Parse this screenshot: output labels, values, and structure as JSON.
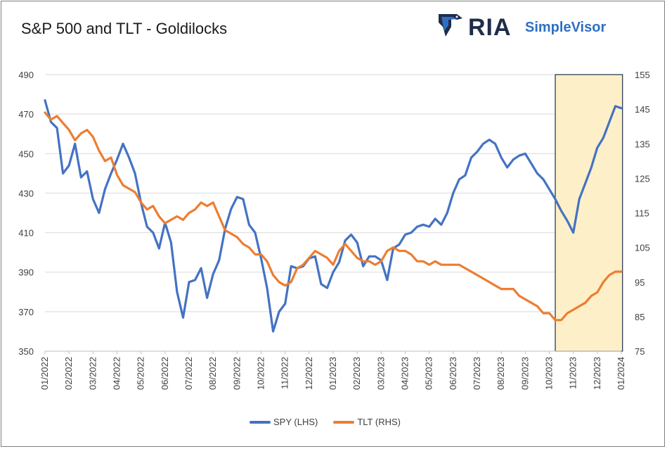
{
  "title": "S&P 500 and TLT - Goldilocks",
  "brand": {
    "logo_icon": "eagle-shield-icon",
    "name": "RIA",
    "product": "SimpleVisor"
  },
  "chart_data": {
    "type": "line",
    "title": "S&P 500 and TLT - Goldilocks",
    "x_tick_labels": [
      "01/2022",
      "02/2022",
      "03/2022",
      "04/2022",
      "05/2022",
      "06/2022",
      "07/2022",
      "08/2022",
      "09/2022",
      "10/2022",
      "11/2022",
      "12/2022",
      "01/2023",
      "02/2023",
      "03/2023",
      "04/2023",
      "05/2023",
      "06/2023",
      "07/2023",
      "08/2023",
      "09/2023",
      "10/2023",
      "11/2023",
      "12/2023",
      "01/2024"
    ],
    "left_axis": {
      "ylim": [
        350,
        490
      ],
      "ticks": [
        350,
        370,
        390,
        410,
        430,
        450,
        470,
        490
      ]
    },
    "right_axis": {
      "ylim": [
        75,
        155
      ],
      "ticks": [
        75,
        85,
        95,
        105,
        115,
        125,
        135,
        145,
        155
      ]
    },
    "grid": "horizontal",
    "legend_position": "bottom",
    "highlight": {
      "from": "10/2023",
      "to": "01/2024",
      "fill": "#fdf0c8",
      "border": "#1f2d4a"
    },
    "series": [
      {
        "name": "SPY (LHS)",
        "axis": "left",
        "color": "#4472c4",
        "x": [
          "01/2022",
          "01/2022",
          "01/2022",
          "01/2022",
          "02/2022",
          "02/2022",
          "02/2022",
          "02/2022",
          "03/2022",
          "03/2022",
          "03/2022",
          "03/2022",
          "04/2022",
          "04/2022",
          "04/2022",
          "04/2022",
          "05/2022",
          "05/2022",
          "05/2022",
          "05/2022",
          "06/2022",
          "06/2022",
          "06/2022",
          "06/2022",
          "07/2022",
          "07/2022",
          "07/2022",
          "07/2022",
          "08/2022",
          "08/2022",
          "08/2022",
          "08/2022",
          "09/2022",
          "09/2022",
          "09/2022",
          "09/2022",
          "10/2022",
          "10/2022",
          "10/2022",
          "10/2022",
          "11/2022",
          "11/2022",
          "11/2022",
          "11/2022",
          "12/2022",
          "12/2022",
          "12/2022",
          "12/2022",
          "01/2023",
          "01/2023",
          "01/2023",
          "01/2023",
          "02/2023",
          "02/2023",
          "02/2023",
          "02/2023",
          "03/2023",
          "03/2023",
          "03/2023",
          "03/2023",
          "04/2023",
          "04/2023",
          "04/2023",
          "04/2023",
          "05/2023",
          "05/2023",
          "05/2023",
          "05/2023",
          "06/2023",
          "06/2023",
          "06/2023",
          "06/2023",
          "07/2023",
          "07/2023",
          "07/2023",
          "07/2023",
          "08/2023",
          "08/2023",
          "08/2023",
          "08/2023",
          "09/2023",
          "09/2023",
          "09/2023",
          "09/2023",
          "10/2023",
          "10/2023",
          "10/2023",
          "10/2023",
          "11/2023",
          "11/2023",
          "11/2023",
          "11/2023",
          "12/2023",
          "12/2023",
          "12/2023",
          "12/2023",
          "01/2024"
        ],
        "values": [
          477,
          466,
          463,
          440,
          444,
          455,
          438,
          441,
          427,
          420,
          432,
          440,
          447,
          455,
          448,
          440,
          425,
          413,
          410,
          402,
          415,
          405,
          380,
          367,
          385,
          386,
          392,
          377,
          389,
          396,
          412,
          422,
          428,
          427,
          414,
          410,
          397,
          382,
          360,
          370,
          374,
          393,
          392,
          393,
          397,
          398,
          384,
          382,
          390,
          395,
          406,
          409,
          405,
          393,
          398,
          398,
          396,
          386,
          402,
          404,
          409,
          410,
          413,
          414,
          413,
          417,
          414,
          420,
          430,
          437,
          439,
          448,
          451,
          455,
          457,
          455,
          448,
          443,
          447,
          449,
          450,
          445,
          440,
          437,
          432,
          427,
          421,
          416,
          410,
          427,
          435,
          443,
          453,
          458,
          466,
          474,
          473
        ]
      },
      {
        "name": "TLT (RHS)",
        "axis": "right",
        "color": "#ed7d31",
        "x": [
          "01/2022",
          "01/2022",
          "01/2022",
          "01/2022",
          "02/2022",
          "02/2022",
          "02/2022",
          "02/2022",
          "03/2022",
          "03/2022",
          "03/2022",
          "03/2022",
          "04/2022",
          "04/2022",
          "04/2022",
          "04/2022",
          "05/2022",
          "05/2022",
          "05/2022",
          "05/2022",
          "06/2022",
          "06/2022",
          "06/2022",
          "06/2022",
          "07/2022",
          "07/2022",
          "07/2022",
          "07/2022",
          "08/2022",
          "08/2022",
          "08/2022",
          "08/2022",
          "09/2022",
          "09/2022",
          "09/2022",
          "09/2022",
          "10/2022",
          "10/2022",
          "10/2022",
          "10/2022",
          "11/2022",
          "11/2022",
          "11/2022",
          "11/2022",
          "12/2022",
          "12/2022",
          "12/2022",
          "12/2022",
          "01/2023",
          "01/2023",
          "01/2023",
          "01/2023",
          "02/2023",
          "02/2023",
          "02/2023",
          "02/2023",
          "03/2023",
          "03/2023",
          "03/2023",
          "03/2023",
          "04/2023",
          "04/2023",
          "04/2023",
          "04/2023",
          "05/2023",
          "05/2023",
          "05/2023",
          "05/2023",
          "06/2023",
          "06/2023",
          "06/2023",
          "06/2023",
          "07/2023",
          "07/2023",
          "07/2023",
          "07/2023",
          "08/2023",
          "08/2023",
          "08/2023",
          "08/2023",
          "09/2023",
          "09/2023",
          "09/2023",
          "09/2023",
          "10/2023",
          "10/2023",
          "10/2023",
          "10/2023",
          "11/2023",
          "11/2023",
          "11/2023",
          "11/2023",
          "12/2023",
          "12/2023",
          "12/2023",
          "12/2023",
          "01/2024"
        ],
        "values": [
          144,
          142,
          143,
          141,
          139,
          136,
          138,
          139,
          137,
          133,
          130,
          131,
          126,
          123,
          122,
          121,
          118,
          116,
          117,
          114,
          112,
          113,
          114,
          113,
          115,
          116,
          118,
          117,
          118,
          114,
          110,
          109,
          108,
          106,
          105,
          103,
          103,
          101,
          97,
          95,
          94,
          95,
          99,
          100,
          102,
          104,
          103,
          102,
          100,
          104,
          106,
          104,
          102,
          101,
          101,
          100,
          101,
          104,
          105,
          104,
          104,
          103,
          101,
          101,
          100,
          101,
          100,
          100,
          100,
          100,
          99,
          98,
          97,
          96,
          95,
          94,
          93,
          93,
          93,
          91,
          90,
          89,
          88,
          86,
          86,
          84,
          84,
          86,
          87,
          88,
          89,
          91,
          92,
          95,
          97,
          98,
          98
        ]
      }
    ]
  }
}
